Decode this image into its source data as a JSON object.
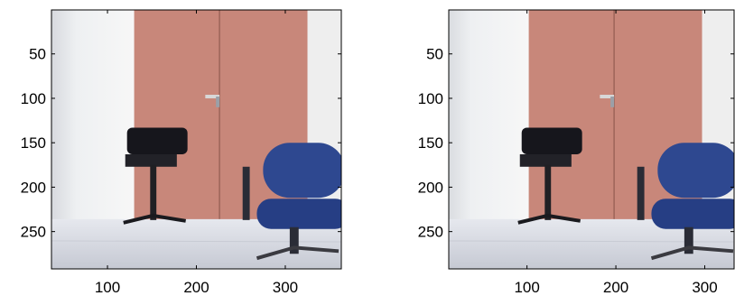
{
  "panels": [
    {
      "xlim": [
        37,
        363
      ],
      "ylim": [
        0.5,
        292
      ],
      "xticks": [
        100,
        200,
        300
      ],
      "yticks": [
        50,
        100,
        150,
        200,
        250
      ]
    },
    {
      "xlim": [
        12,
        333
      ],
      "ylim": [
        0.5,
        292
      ],
      "xticks": [
        100,
        200,
        300
      ],
      "yticks": [
        50,
        100,
        150,
        200,
        250
      ]
    }
  ]
}
